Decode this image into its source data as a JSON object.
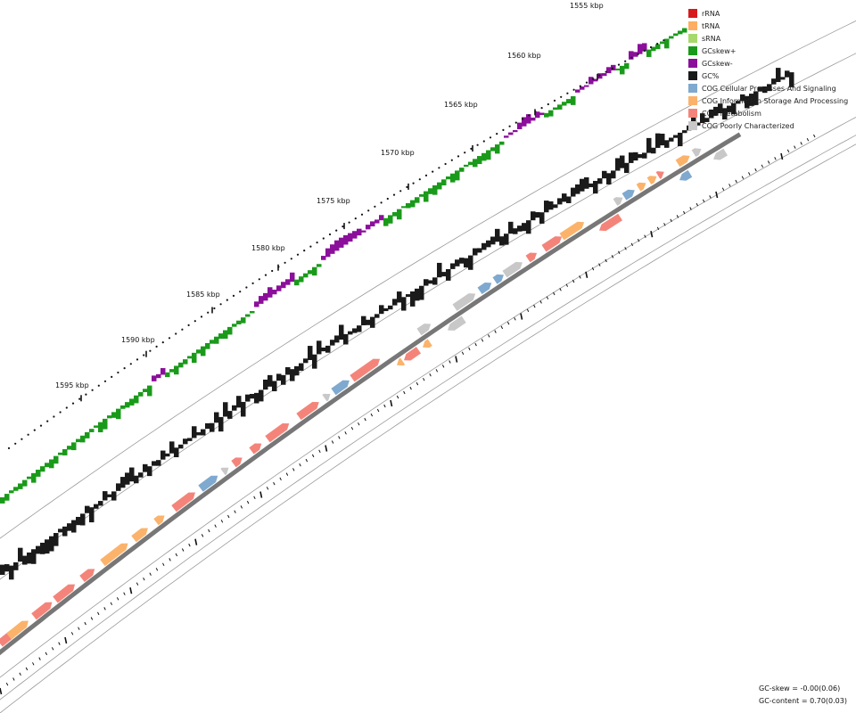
{
  "axis": {
    "unit": "kbp",
    "tick_labels": [
      "1555 kbp",
      "1560 kbp",
      "1565 kbp",
      "1570 kbp",
      "1575 kbp",
      "1580 kbp",
      "1585 kbp",
      "1590 kbp",
      "1595 kbp"
    ]
  },
  "legend": [
    {
      "label": "rRNA",
      "color": "#d7191c"
    },
    {
      "label": "tRNA",
      "color": "#fdae61"
    },
    {
      "label": "sRNA",
      "color": "#a6d96a"
    },
    {
      "label": "GCskew+",
      "color": "#1a9a1a"
    },
    {
      "label": "GCskew-",
      "color": "#8b0f9b"
    },
    {
      "label": "GC%",
      "color": "#1a1a1a"
    },
    {
      "label": "COG Cellular Processes And Signaling",
      "color": "#7fa9cf"
    },
    {
      "label": "COG Information Storage And Processing",
      "color": "#fbb36b"
    },
    {
      "label": "COG Metabolism",
      "color": "#f4847a"
    },
    {
      "label": "COG Poorly Characterized",
      "color": "#c8c8c8"
    }
  ],
  "stats": {
    "gc_skew": "GC-skew = -0.00(0.06)",
    "gc_content": "GC-content = 0.70(0.03)"
  },
  "colors": {
    "gc_skew_pos": "#1a9a1a",
    "gc_skew_neg": "#8b0f9b",
    "gc_content": "#1a1a1a",
    "backbone": "#777777",
    "cog_cellular": "#7fa9cf",
    "cog_information": "#fbb36b",
    "cog_metabolism": "#f4847a",
    "cog_poorly": "#c8c8c8"
  }
}
